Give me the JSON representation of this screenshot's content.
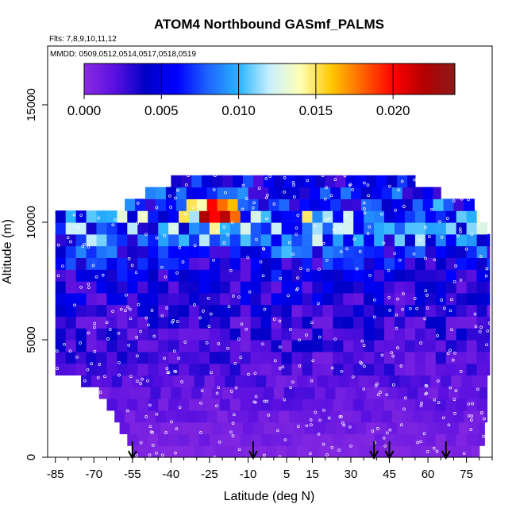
{
  "chart_data": {
    "type": "heatmap",
    "title": "ATOM4 Northbound GASmf_PALMS",
    "subtitle_flights": "Flts: 7,8,9,10,11,12",
    "subtitle_dates": "MMDD: 0509,0512,0514,0517,0518,0519",
    "xlabel": "Latitude (deg N)",
    "ylabel": "Altitude (m)",
    "xlim": [
      -88,
      85
    ],
    "ylim": [
      0,
      17500
    ],
    "x_ticks": [
      -85,
      -70,
      -55,
      -40,
      -25,
      -10,
      5,
      15,
      30,
      45,
      60,
      75
    ],
    "x_tick_labels": [
      "-85",
      "-70",
      "-55",
      "-40",
      "-25",
      "-10",
      "5",
      "15",
      "30",
      "45",
      "60",
      "75"
    ],
    "y_ticks": [
      0,
      5000,
      10000,
      15000
    ],
    "y_tick_labels": [
      "0",
      "5000",
      "10000",
      "15000"
    ],
    "colorbar": {
      "min": 0.0,
      "max": 0.024,
      "ticks": [
        0.0,
        0.005,
        0.01,
        0.015,
        0.02
      ],
      "tick_labels": [
        "0.000",
        "0.005",
        "0.010",
        "0.015",
        "0.020"
      ],
      "colors": [
        "#8a2be2",
        "#5a10e0",
        "#0000c8",
        "#0000ff",
        "#1e64ff",
        "#28b4ff",
        "#c8f0ff",
        "#ffffb4",
        "#ffc800",
        "#ff6400",
        "#ff0000",
        "#b40000",
        "#8b1a1a"
      ]
    },
    "vertical_profile_latitudes": [
      -55,
      -8,
      39,
      45,
      67
    ],
    "altitude_bins_m": [
      0,
      500,
      1000,
      1500,
      2000,
      2500,
      3000,
      3500,
      4000,
      4500,
      5000,
      5500,
      6000,
      6500,
      7000,
      7500,
      8000,
      8500,
      9000,
      9500,
      10000,
      10500,
      11000,
      11500,
      12000
    ],
    "latitude_range_by_altitude_bin": [
      [
        -55,
        80
      ],
      [
        -57,
        82
      ],
      [
        -60,
        82
      ],
      [
        -62,
        83
      ],
      [
        -65,
        83
      ],
      [
        -68,
        83
      ],
      [
        -75,
        83
      ],
      [
        -85,
        84
      ],
      [
        -85,
        84
      ],
      [
        -85,
        84
      ],
      [
        -85,
        84
      ],
      [
        -85,
        84
      ],
      [
        -85,
        84
      ],
      [
        -85,
        84
      ],
      [
        -85,
        84
      ],
      [
        -85,
        84
      ],
      [
        -85,
        84
      ],
      [
        -85,
        84
      ],
      [
        -85,
        84
      ],
      [
        -85,
        83
      ],
      [
        -85,
        80
      ],
      [
        -58,
        78
      ],
      [
        -50,
        65
      ],
      [
        -40,
        55
      ]
    ],
    "mean_mixing_ratio_by_altitude_bin": [
      0.0005,
      0.0008,
      0.001,
      0.0012,
      0.0014,
      0.0016,
      0.0018,
      0.002,
      0.0022,
      0.0024,
      0.0026,
      0.0028,
      0.003,
      0.0033,
      0.0035,
      0.004,
      0.0045,
      0.0055,
      0.007,
      0.0075,
      0.008,
      0.0065,
      0.0055,
      0.0045
    ],
    "hotspot": {
      "latitude": -25,
      "altitude_m": 10500,
      "value": 0.0175
    }
  }
}
